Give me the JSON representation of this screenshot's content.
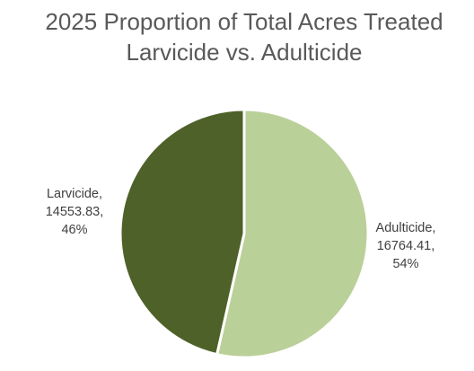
{
  "chart_data": {
    "type": "pie",
    "title": "2025 Proportion of Total Acres Treated",
    "subtitle": "Larvicide vs. Adulticide",
    "slices": [
      {
        "name": "Adulticide",
        "value": 16764.41,
        "value_label": "16764.41",
        "percent_label": "54%",
        "color": "#bad099"
      },
      {
        "name": "Larvicide",
        "value": 14553.83,
        "value_label": "14553.83",
        "percent_label": "46%",
        "color": "#4e6128"
      }
    ],
    "start": "top",
    "direction": "clockwise",
    "legend": "none",
    "border_color": "#ffffff"
  }
}
